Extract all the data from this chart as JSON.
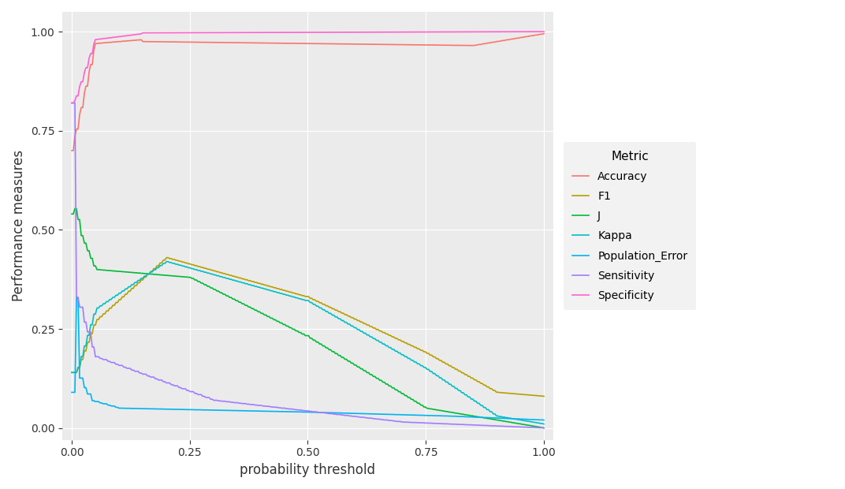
{
  "title": "",
  "xlabel": "probability threshold",
  "ylabel": "Performance measures",
  "background_color": "#EBEBEB",
  "grid_color": "#FFFFFF",
  "xlim": [
    -0.02,
    1.02
  ],
  "ylim": [
    -0.03,
    1.05
  ],
  "legend_title": "Metric",
  "metrics": {
    "Accuracy": {
      "color": "#F8766D",
      "linewidth": 1.2
    },
    "F1": {
      "color": "#B79F00",
      "linewidth": 1.2
    },
    "J": {
      "color": "#00BA38",
      "linewidth": 1.2
    },
    "Kappa": {
      "color": "#00BFC4",
      "linewidth": 1.2
    },
    "Population_Error": {
      "color": "#00B4F0",
      "linewidth": 1.2
    },
    "Sensitivity": {
      "color": "#A07CFF",
      "linewidth": 1.2
    },
    "Specificity": {
      "color": "#FF61CC",
      "linewidth": 1.2
    }
  },
  "xticks": [
    0.0,
    0.25,
    0.5,
    0.75,
    1.0
  ],
  "yticks": [
    0.0,
    0.25,
    0.5,
    0.75,
    1.0
  ]
}
